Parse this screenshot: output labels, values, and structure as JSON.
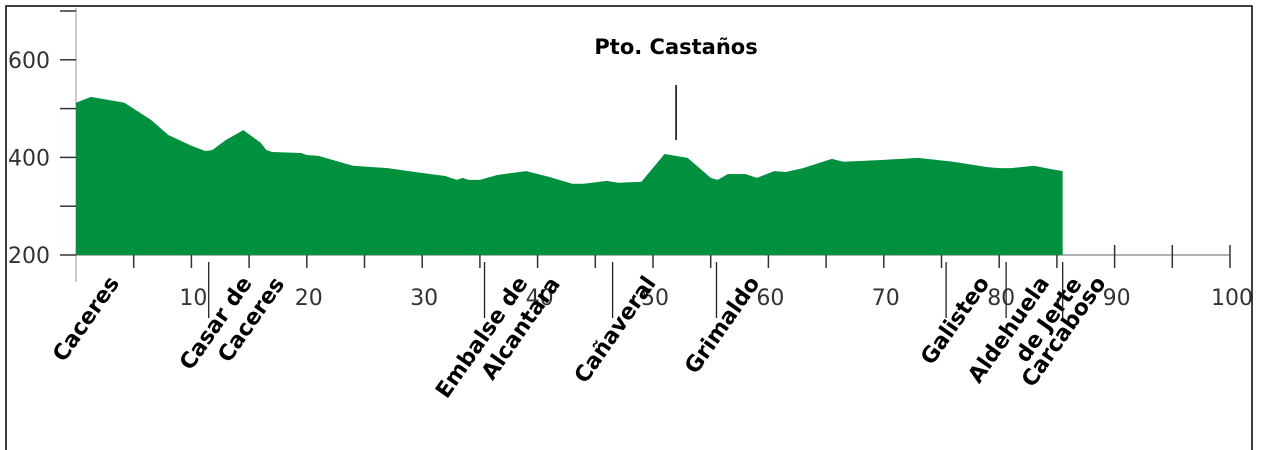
{
  "chart_data": {
    "type": "area",
    "color": "#00913f",
    "xlim": [
      0,
      100
    ],
    "ylim": [
      200,
      700
    ],
    "xticks": [
      10,
      20,
      30,
      40,
      50,
      60,
      70,
      80,
      90,
      100
    ],
    "xminorticks": [
      5,
      15,
      25,
      35,
      45,
      55,
      65,
      75,
      85,
      95
    ],
    "yticks": [
      200,
      400,
      600
    ],
    "yminorticks": [
      300,
      500,
      700
    ],
    "x": [
      0,
      1.3,
      4.2,
      6.5,
      8,
      10,
      11.2,
      11.8,
      13,
      14.5,
      16,
      16.5,
      17,
      19.5,
      20,
      21,
      24,
      27,
      30,
      32,
      33,
      33.5,
      34,
      35,
      36.5,
      39,
      41,
      43,
      44,
      46,
      47,
      49,
      51,
      53,
      55,
      55.6,
      56.5,
      58,
      59,
      60.5,
      61.5,
      63,
      65.5,
      66.5,
      70,
      73,
      76,
      79,
      80,
      81,
      83,
      84.5,
      85.5
    ],
    "values": [
      512,
      524,
      512,
      477,
      446,
      424,
      413,
      415,
      436,
      456,
      430,
      415,
      411,
      409,
      405,
      403,
      383,
      378,
      368,
      362,
      354,
      358,
      354,
      354,
      364,
      372,
      360,
      346,
      346,
      352,
      348,
      350,
      407,
      399,
      358,
      354,
      366,
      366,
      358,
      372,
      370,
      378,
      397,
      391,
      395,
      399,
      391,
      380,
      378,
      378,
      383,
      376,
      372
    ],
    "towns": [
      {
        "lines": [
          "Caceres"
        ],
        "x": 0
      },
      {
        "lines": [
          "Casar de",
          "Caceres"
        ],
        "x": 11.5
      },
      {
        "lines": [
          "Embalse de",
          "Alcantara"
        ],
        "x": 35.4
      },
      {
        "lines": [
          "Cañaveral"
        ],
        "x": 46.5
      },
      {
        "lines": [
          "Grimaldo"
        ],
        "x": 55.5
      },
      {
        "lines": [
          "Galisteo"
        ],
        "x": 75.4
      },
      {
        "lines": [
          "Aldehuela",
          "de Jerte"
        ],
        "x": 80.6
      },
      {
        "lines": [
          "Carcaboso"
        ],
        "x": 85.5
      }
    ],
    "peak": {
      "label": "Pto. Castaños",
      "x": 52
    }
  }
}
